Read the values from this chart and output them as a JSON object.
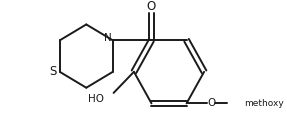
{
  "bg_color": "#ffffff",
  "line_color": "#1a1a1a",
  "line_width": 1.4,
  "text_color": "#1a1a1a",
  "font_size": 7.5,
  "figsize": [
    2.87,
    1.37
  ],
  "dpi": 100,
  "xlim": [
    0,
    287
  ],
  "ylim": [
    0,
    137
  ]
}
